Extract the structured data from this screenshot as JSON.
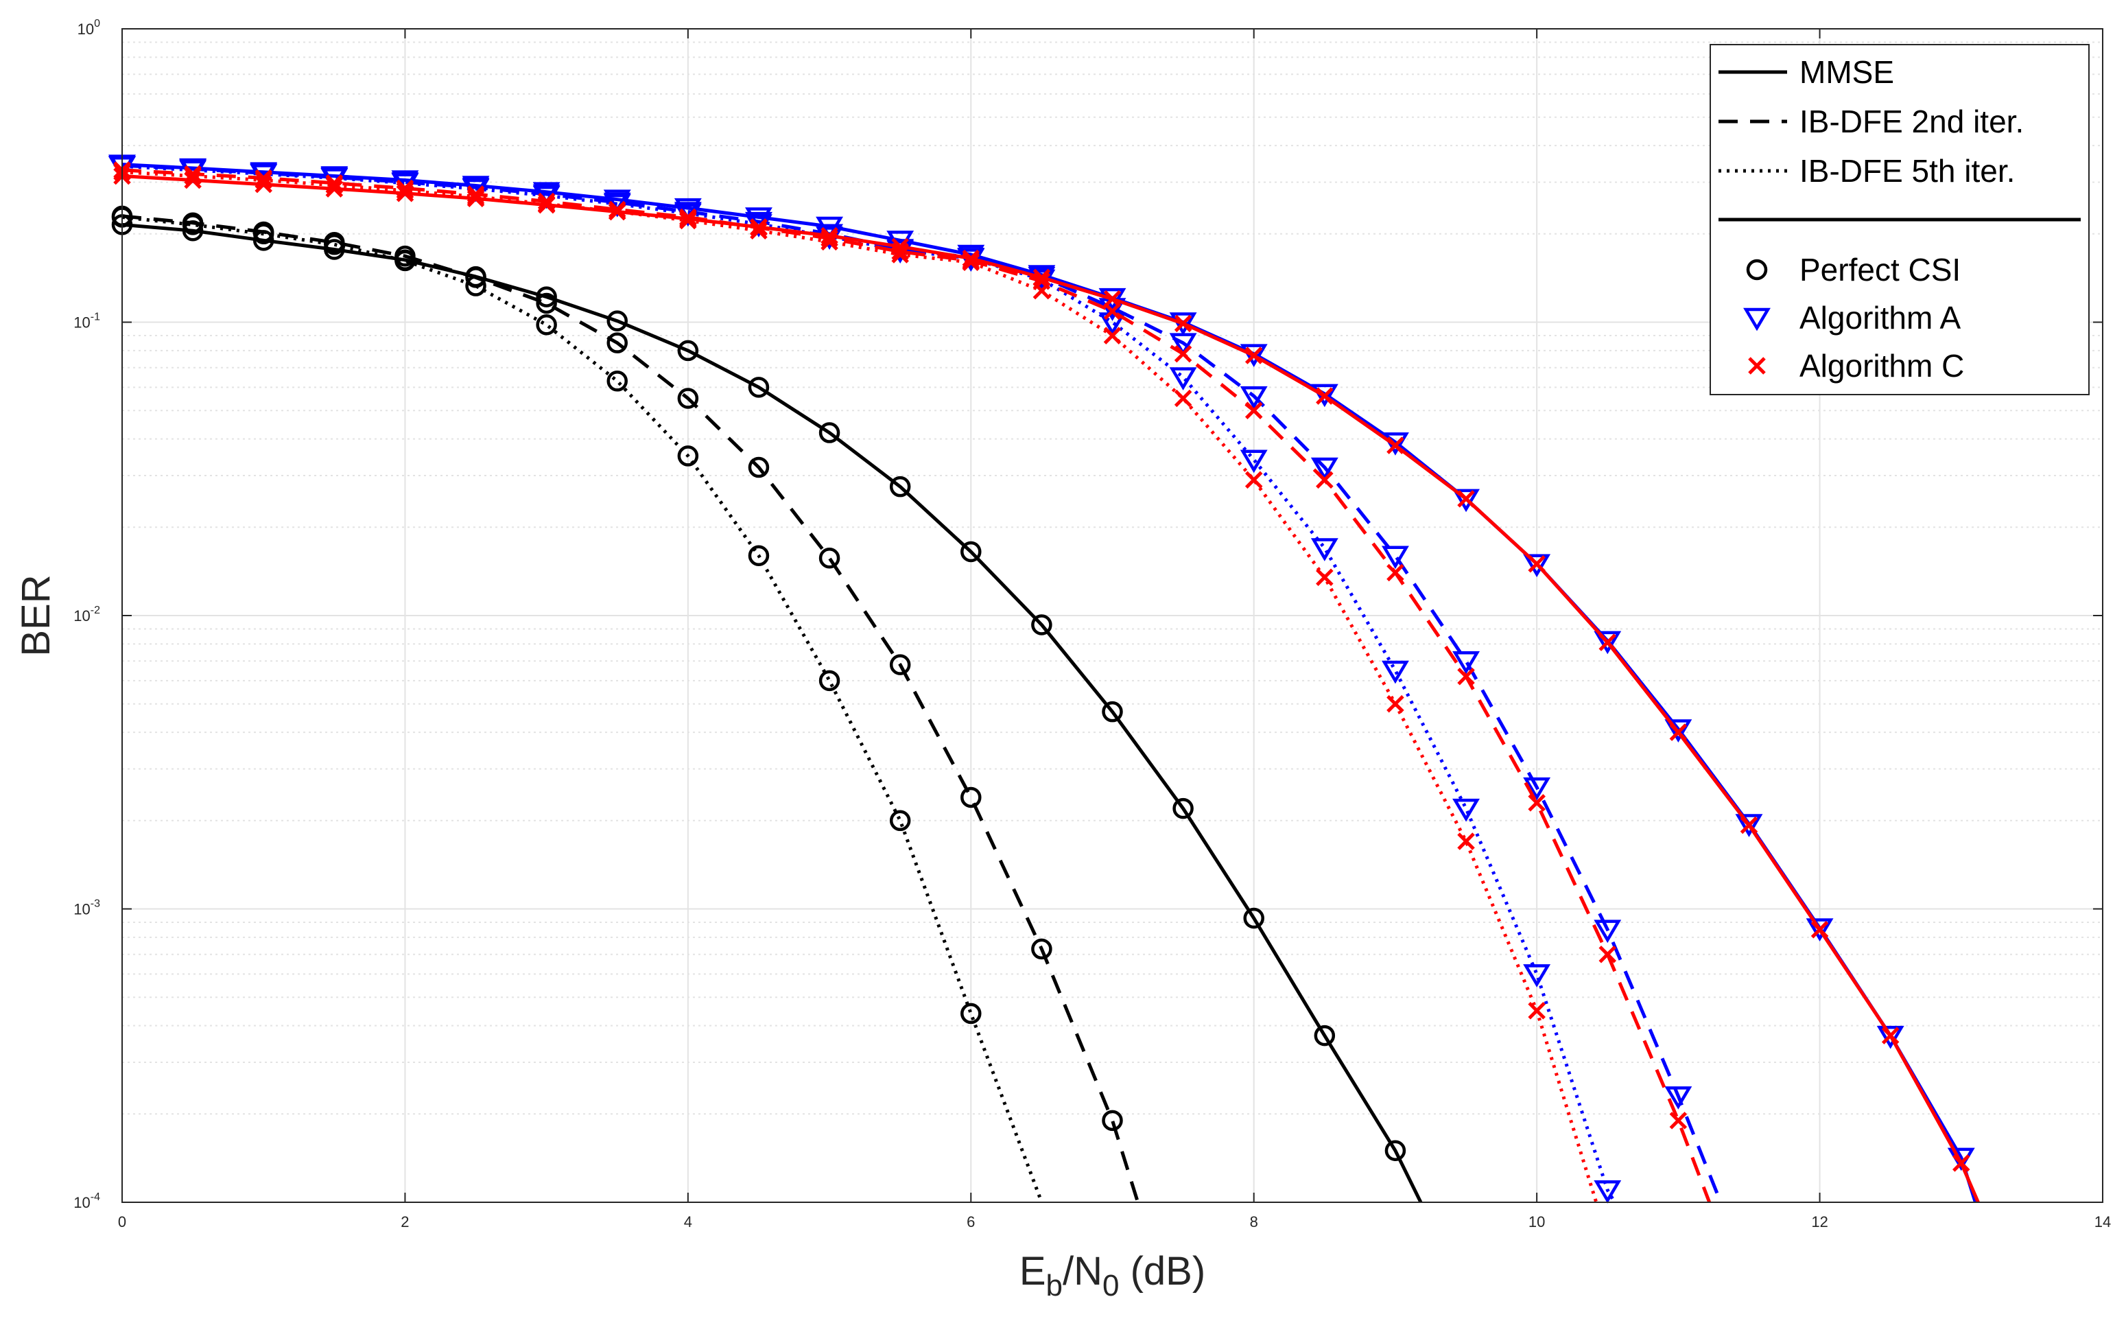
{
  "chart_data": {
    "type": "line",
    "title": "",
    "xlabel": {
      "base": "E",
      "sub1": "b",
      "mid": "/N",
      "sub2": "0",
      "tail": " (dB)"
    },
    "ylabel": "BER",
    "xlim": [
      0,
      14
    ],
    "ylim": [
      0.0001,
      1
    ],
    "yscale": "log",
    "grid": true,
    "x_ticks": [
      0,
      2,
      4,
      6,
      8,
      10,
      12,
      14
    ],
    "x_tick_labels": [
      "0",
      "2",
      "4",
      "6",
      "8",
      "10",
      "12",
      "14"
    ],
    "y_ticks": [
      {
        "value": 1,
        "base": "10",
        "exp": "0"
      },
      {
        "value": 0.1,
        "base": "10",
        "exp": "-1"
      },
      {
        "value": 0.01,
        "base": "10",
        "exp": "-2"
      },
      {
        "value": 0.001,
        "base": "10",
        "exp": "-3"
      },
      {
        "value": 0.0001,
        "base": "10",
        "exp": "-4"
      }
    ],
    "legend": {
      "position": "top-right",
      "line_entries": [
        {
          "label": "MMSE",
          "style": "solid"
        },
        {
          "label": "IB-DFE 2nd iter.",
          "style": "dashed"
        },
        {
          "label": "IB-DFE 5th iter.",
          "style": "dotted"
        }
      ],
      "marker_entries": [
        {
          "label": "Perfect CSI",
          "marker": "circle",
          "color": "#000000"
        },
        {
          "label": "Algorithm A",
          "marker": "triangle-down",
          "color": "#0000ff"
        },
        {
          "label": "Algorithm C",
          "marker": "x",
          "color": "#ff0000"
        }
      ]
    },
    "colors": {
      "perfect": "#000000",
      "algA": "#0000ff",
      "algC": "#ff0000",
      "grid": "#e3e3e3",
      "axis": "#262626"
    },
    "series": [
      {
        "name": "Perfect CSI - MMSE",
        "color": "#000000",
        "line": "solid",
        "marker": "circle",
        "x": [
          0,
          0.5,
          1,
          1.5,
          2,
          2.5,
          3,
          3.5,
          4,
          4.5,
          5,
          5.5,
          6,
          6.5,
          7,
          7.5,
          8,
          8.5,
          9
        ],
        "y": [
          0.215,
          0.205,
          0.19,
          0.177,
          0.163,
          0.143,
          0.122,
          0.101,
          0.08,
          0.06,
          0.042,
          0.0275,
          0.0165,
          0.0093,
          0.0047,
          0.0022,
          0.00093,
          0.00037,
          0.00015
        ],
        "ext": [
          9.18,
          0.0001
        ]
      },
      {
        "name": "Perfect CSI - IB-DFE 2nd iter.",
        "color": "#000000",
        "line": "dashed",
        "marker": "circle",
        "x": [
          0,
          0.5,
          1,
          1.5,
          2,
          2.5,
          3,
          3.5,
          4,
          4.5,
          5,
          5.5,
          6,
          6.5,
          7
        ],
        "y": [
          0.23,
          0.218,
          0.203,
          0.187,
          0.168,
          0.142,
          0.116,
          0.085,
          0.055,
          0.032,
          0.0157,
          0.0068,
          0.0024,
          0.00073,
          0.00019
        ],
        "ext": [
          7.18,
          0.0001
        ]
      },
      {
        "name": "Perfect CSI - IB-DFE 5th iter.",
        "color": "#000000",
        "line": "dotted",
        "marker": "circle",
        "x": [
          0,
          0.5,
          1,
          1.5,
          2,
          2.5,
          3,
          3.5,
          4,
          4.5,
          5,
          5.5,
          6
        ],
        "y": [
          0.228,
          0.215,
          0.2,
          0.184,
          0.162,
          0.133,
          0.098,
          0.063,
          0.035,
          0.016,
          0.006,
          0.002,
          0.00044
        ],
        "ext": [
          6.5,
          0.0001
        ]
      },
      {
        "name": "Algorithm A - MMSE",
        "color": "#0000ff",
        "line": "solid",
        "marker": "triangle-down",
        "x": [
          0,
          0.5,
          1,
          1.5,
          2,
          2.5,
          3,
          3.5,
          4,
          4.5,
          5,
          5.5,
          6,
          6.5,
          7,
          7.5,
          8,
          8.5,
          9,
          9.5,
          10,
          10.5,
          11,
          11.5,
          12,
          12.5,
          13
        ],
        "y": [
          0.345,
          0.335,
          0.325,
          0.315,
          0.305,
          0.292,
          0.278,
          0.262,
          0.245,
          0.228,
          0.212,
          0.19,
          0.17,
          0.145,
          0.121,
          0.1,
          0.078,
          0.057,
          0.039,
          0.025,
          0.015,
          0.0082,
          0.0041,
          0.00195,
          0.00086,
          0.00037,
          0.000142
        ],
        "ext": [
          13.1,
          0.0001
        ]
      },
      {
        "name": "Algorithm A - IB-DFE 2nd iter.",
        "color": "#0000ff",
        "line": "dashed",
        "marker": "triangle-down",
        "x": [
          0,
          0.5,
          1,
          1.5,
          2,
          2.5,
          3,
          3.5,
          4,
          4.5,
          5,
          5.5,
          6,
          6.5,
          7,
          7.5,
          8,
          8.5,
          9,
          9.5,
          10,
          10.5,
          11
        ],
        "y": [
          0.342,
          0.333,
          0.322,
          0.312,
          0.3,
          0.288,
          0.273,
          0.256,
          0.238,
          0.22,
          0.2,
          0.178,
          0.166,
          0.143,
          0.112,
          0.085,
          0.056,
          0.032,
          0.016,
          0.007,
          0.0026,
          0.00085,
          0.00023
        ],
        "ext": [
          11.3,
          0.0001
        ]
      },
      {
        "name": "Algorithm A - IB-DFE 5th iter.",
        "color": "#0000ff",
        "line": "dotted",
        "marker": "triangle-down",
        "x": [
          0,
          0.5,
          1,
          1.5,
          2,
          2.5,
          3,
          3.5,
          4,
          4.5,
          5,
          5.5,
          6,
          6.5,
          7,
          7.5,
          8,
          8.5,
          9,
          9.5,
          10,
          10.5
        ],
        "y": [
          0.34,
          0.33,
          0.32,
          0.31,
          0.298,
          0.285,
          0.27,
          0.253,
          0.235,
          0.216,
          0.196,
          0.176,
          0.165,
          0.14,
          0.1,
          0.065,
          0.034,
          0.017,
          0.0065,
          0.0022,
          0.0006,
          0.00011
        ],
        "ext": [
          10.55,
          0.0001
        ]
      },
      {
        "name": "Algorithm C - MMSE",
        "color": "#ff0000",
        "line": "solid",
        "marker": "x",
        "x": [
          0,
          0.5,
          1,
          1.5,
          2,
          2.5,
          3,
          3.5,
          4,
          4.5,
          5,
          5.5,
          6,
          6.5,
          7,
          7.5,
          8,
          8.5,
          9,
          9.5,
          10,
          10.5,
          11,
          11.5,
          12,
          12.5,
          13
        ],
        "y": [
          0.315,
          0.305,
          0.295,
          0.285,
          0.275,
          0.264,
          0.251,
          0.238,
          0.225,
          0.211,
          0.197,
          0.181,
          0.165,
          0.142,
          0.12,
          0.099,
          0.077,
          0.056,
          0.038,
          0.025,
          0.015,
          0.0081,
          0.004,
          0.00193,
          0.00085,
          0.00037,
          0.000136
        ],
        "ext": [
          13.12,
          0.0001
        ]
      },
      {
        "name": "Algorithm C - IB-DFE 2nd iter.",
        "color": "#ff0000",
        "line": "dashed",
        "marker": "x",
        "x": [
          0,
          0.5,
          1,
          1.5,
          2,
          2.5,
          3,
          3.5,
          4,
          4.5,
          5,
          5.5,
          6,
          6.5,
          7,
          7.5,
          8,
          8.5,
          9,
          9.5,
          10,
          10.5,
          11
        ],
        "y": [
          0.33,
          0.32,
          0.31,
          0.298,
          0.286,
          0.273,
          0.258,
          0.242,
          0.228,
          0.21,
          0.193,
          0.174,
          0.162,
          0.138,
          0.109,
          0.078,
          0.05,
          0.029,
          0.014,
          0.0062,
          0.0023,
          0.0007,
          0.00019
        ],
        "ext": [
          11.22,
          0.0001
        ]
      },
      {
        "name": "Algorithm C - IB-DFE 5th iter.",
        "color": "#ff0000",
        "line": "dotted",
        "marker": "x",
        "x": [
          0,
          0.5,
          1,
          1.5,
          2,
          2.5,
          3,
          3.5,
          4,
          4.5,
          5,
          5.5,
          6,
          6.5,
          7,
          7.5,
          8,
          8.5,
          9,
          9.5,
          10
        ],
        "y": [
          0.325,
          0.315,
          0.305,
          0.293,
          0.281,
          0.268,
          0.253,
          0.238,
          0.222,
          0.205,
          0.188,
          0.17,
          0.16,
          0.128,
          0.09,
          0.055,
          0.029,
          0.0135,
          0.005,
          0.0017,
          0.00045
        ],
        "ext": [
          10.42,
          0.0001
        ]
      }
    ]
  }
}
